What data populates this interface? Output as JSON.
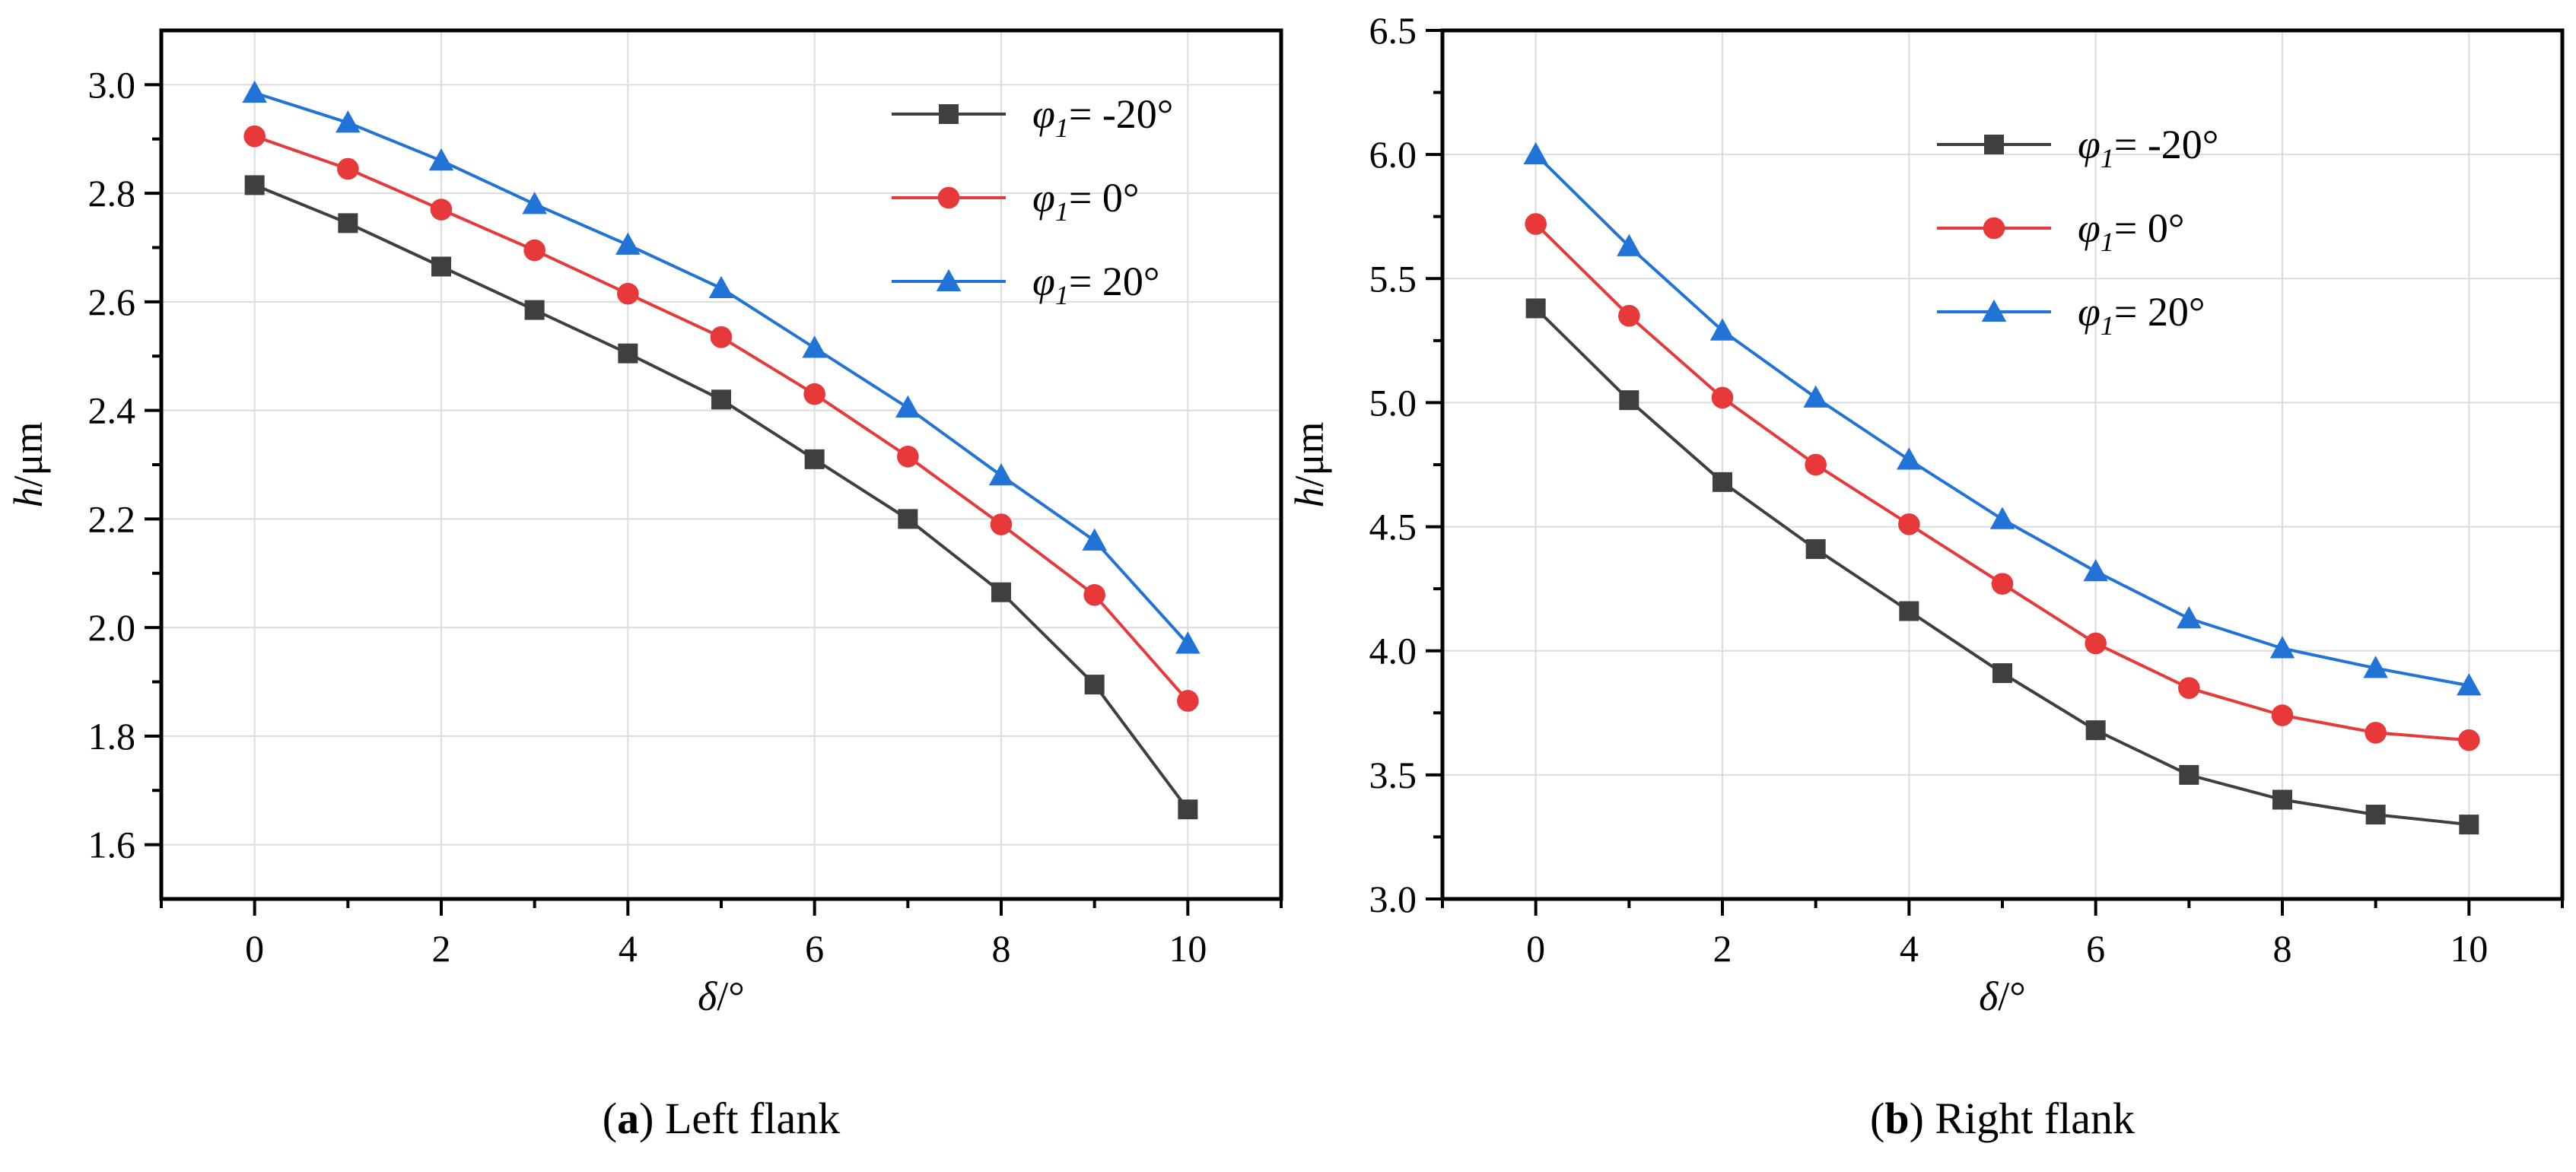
{
  "chart_data": [
    {
      "id": "a",
      "type": "line",
      "caption_letter": "a",
      "caption_text": " Left flank",
      "xlabel": {
        "symbol": "δ",
        "unit": "/°"
      },
      "ylabel": {
        "symbol": "h",
        "unit": "/μm"
      },
      "xlim": [
        -1,
        11
      ],
      "ylim": [
        1.5,
        3.1
      ],
      "xticks": [
        0,
        2,
        4,
        6,
        8,
        10
      ],
      "yticks": [
        1.6,
        1.8,
        2.0,
        2.2,
        2.4,
        2.6,
        2.8,
        3.0
      ],
      "ytick_labels": [
        "1.6",
        "1.8",
        "2.0",
        "2.2",
        "2.4",
        "2.6",
        "2.8",
        "3.0"
      ],
      "grid": true,
      "legend_position": "top-right",
      "x": [
        0,
        1,
        2,
        3,
        4,
        5,
        6,
        7,
        8,
        9,
        10
      ],
      "series": [
        {
          "name": "φ1= -20°",
          "symbol": "φ",
          "sub": "1",
          "value_text": "= -20°",
          "marker": "square",
          "color": "#3f3f3f",
          "values": [
            2.815,
            2.745,
            2.665,
            2.585,
            2.505,
            2.42,
            2.31,
            2.2,
            2.065,
            1.895,
            1.665
          ]
        },
        {
          "name": "φ1= 0°",
          "symbol": "φ",
          "sub": "1",
          "value_text": "=  0°",
          "marker": "circle",
          "color": "#e8393a",
          "values": [
            2.905,
            2.845,
            2.77,
            2.695,
            2.615,
            2.535,
            2.43,
            2.315,
            2.19,
            2.06,
            1.865
          ]
        },
        {
          "name": "φ1= 20°",
          "symbol": "φ",
          "sub": "1",
          "value_text": "=  20°",
          "marker": "triangle",
          "color": "#2173d8",
          "values": [
            2.985,
            2.93,
            2.86,
            2.78,
            2.705,
            2.625,
            2.515,
            2.405,
            2.28,
            2.16,
            1.97
          ]
        }
      ]
    },
    {
      "id": "b",
      "type": "line",
      "caption_letter": "b",
      "caption_text": " Right flank",
      "xlabel": {
        "symbol": "δ",
        "unit": "/°"
      },
      "ylabel": {
        "symbol": "h",
        "unit": "/μm"
      },
      "xlim": [
        -1,
        11
      ],
      "ylim": [
        3.0,
        6.5
      ],
      "xticks": [
        0,
        2,
        4,
        6,
        8,
        10
      ],
      "yticks": [
        3.0,
        3.5,
        4.0,
        4.5,
        5.0,
        5.5,
        6.0,
        6.5
      ],
      "ytick_labels": [
        "3.0",
        "3.5",
        "4.0",
        "4.5",
        "5.0",
        "5.5",
        "6.0",
        "6.5"
      ],
      "grid": true,
      "legend_position": "top-right",
      "x": [
        0,
        1,
        2,
        3,
        4,
        5,
        6,
        7,
        8,
        9,
        10
      ],
      "series": [
        {
          "name": "φ1= -20°",
          "symbol": "φ",
          "sub": "1",
          "value_text": "= -20°",
          "marker": "square",
          "color": "#3f3f3f",
          "values": [
            5.38,
            5.01,
            4.68,
            4.41,
            4.16,
            3.91,
            3.68,
            3.5,
            3.4,
            3.34,
            3.3
          ]
        },
        {
          "name": "φ1= 0°",
          "symbol": "φ",
          "sub": "1",
          "value_text": "=  0°",
          "marker": "circle",
          "color": "#e8393a",
          "values": [
            5.72,
            5.35,
            5.02,
            4.75,
            4.51,
            4.27,
            4.03,
            3.85,
            3.74,
            3.67,
            3.64
          ]
        },
        {
          "name": "φ1= 20°",
          "symbol": "φ",
          "sub": "1",
          "value_text": "=  20°",
          "marker": "triangle",
          "color": "#2173d8",
          "values": [
            6.0,
            5.63,
            5.29,
            5.02,
            4.77,
            4.53,
            4.32,
            4.13,
            4.01,
            3.93,
            3.86
          ]
        }
      ]
    }
  ]
}
